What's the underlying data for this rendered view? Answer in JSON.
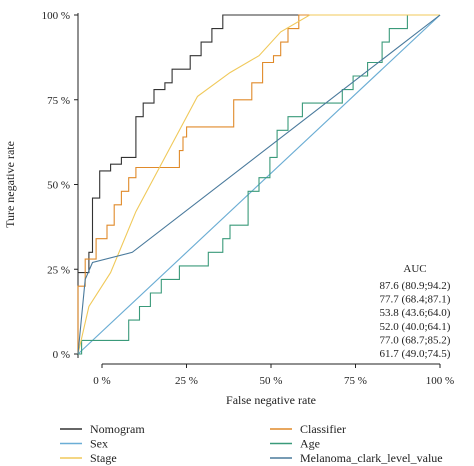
{
  "chart_data": {
    "type": "line",
    "xlabel": "False negative rate",
    "ylabel": "Ture negative rate",
    "xlim": [
      0,
      100
    ],
    "ylim": [
      0,
      100
    ],
    "x_ticks": [
      "0 %",
      "25 %",
      "50 %",
      "75 %",
      "100 %"
    ],
    "y_ticks": [
      "0 %",
      "25 %",
      "50 %",
      "75 %",
      "100 %"
    ],
    "grid": false,
    "reference_diagonal": true,
    "auc_title": "AUC",
    "auc_values": [
      "87.6 (80.9;94.2)",
      "77.7 (68.4;87.1)",
      "53.8 (43.6;64.0)",
      "52.0 (40.0;64.1)",
      "77.0 (68.7;85.2)",
      "61.7 (49.0;74.5)"
    ],
    "legend_position": "bottom",
    "series": [
      {
        "name": "Nomogram",
        "color": "#333333",
        "points": [
          [
            0,
            0
          ],
          [
            0,
            24
          ],
          [
            3,
            24
          ],
          [
            3,
            30
          ],
          [
            4,
            30
          ],
          [
            4,
            46
          ],
          [
            6,
            46
          ],
          [
            6,
            54
          ],
          [
            9,
            54
          ],
          [
            9,
            56
          ],
          [
            12,
            56
          ],
          [
            12,
            58
          ],
          [
            16,
            58
          ],
          [
            16,
            70
          ],
          [
            18,
            70
          ],
          [
            18,
            74
          ],
          [
            21,
            74
          ],
          [
            21,
            78
          ],
          [
            24,
            78
          ],
          [
            24,
            80
          ],
          [
            26,
            80
          ],
          [
            26,
            84
          ],
          [
            31,
            84
          ],
          [
            31,
            88
          ],
          [
            34,
            88
          ],
          [
            34,
            92
          ],
          [
            37,
            92
          ],
          [
            37,
            96
          ],
          [
            40,
            96
          ],
          [
            40,
            100
          ],
          [
            100,
            100
          ]
        ]
      },
      {
        "name": "Classifier",
        "color": "#e08a2a",
        "points": [
          [
            0,
            0
          ],
          [
            0,
            20
          ],
          [
            2,
            20
          ],
          [
            2,
            28
          ],
          [
            5,
            28
          ],
          [
            5,
            34
          ],
          [
            8,
            34
          ],
          [
            8,
            38
          ],
          [
            10,
            38
          ],
          [
            10,
            44
          ],
          [
            12,
            44
          ],
          [
            12,
            48
          ],
          [
            14,
            48
          ],
          [
            14,
            52
          ],
          [
            16,
            52
          ],
          [
            16,
            55
          ],
          [
            28,
            55
          ],
          [
            28,
            60
          ],
          [
            29,
            60
          ],
          [
            29,
            64
          ],
          [
            30,
            64
          ],
          [
            30,
            67
          ],
          [
            43,
            67
          ],
          [
            43,
            75
          ],
          [
            48,
            75
          ],
          [
            48,
            80
          ],
          [
            51,
            80
          ],
          [
            51,
            86
          ],
          [
            54,
            86
          ],
          [
            54,
            88
          ],
          [
            56,
            88
          ],
          [
            56,
            92
          ],
          [
            58,
            92
          ],
          [
            58,
            96
          ],
          [
            61,
            96
          ],
          [
            61,
            100
          ],
          [
            100,
            100
          ]
        ]
      },
      {
        "name": "Sex",
        "color": "#6aaed6",
        "points": [
          [
            0,
            0
          ],
          [
            100,
            100
          ]
        ]
      },
      {
        "name": "Age",
        "color": "#3a9a7a",
        "points": [
          [
            0,
            0
          ],
          [
            1,
            0
          ],
          [
            1,
            4
          ],
          [
            14,
            4
          ],
          [
            14,
            10
          ],
          [
            17,
            10
          ],
          [
            17,
            14
          ],
          [
            20,
            14
          ],
          [
            20,
            18
          ],
          [
            23,
            18
          ],
          [
            23,
            22
          ],
          [
            28,
            22
          ],
          [
            28,
            26
          ],
          [
            36,
            26
          ],
          [
            36,
            30
          ],
          [
            40,
            30
          ],
          [
            40,
            34
          ],
          [
            42,
            34
          ],
          [
            42,
            38
          ],
          [
            47,
            38
          ],
          [
            47,
            48
          ],
          [
            50,
            48
          ],
          [
            50,
            52
          ],
          [
            53,
            52
          ],
          [
            53,
            58
          ],
          [
            55,
            58
          ],
          [
            55,
            66
          ],
          [
            58,
            66
          ],
          [
            58,
            70
          ],
          [
            62,
            70
          ],
          [
            62,
            74
          ],
          [
            73,
            74
          ],
          [
            73,
            78
          ],
          [
            76,
            78
          ],
          [
            76,
            82
          ],
          [
            80,
            82
          ],
          [
            80,
            86
          ],
          [
            84,
            86
          ],
          [
            84,
            92
          ],
          [
            86,
            92
          ],
          [
            86,
            96
          ],
          [
            91,
            96
          ],
          [
            91,
            100
          ],
          [
            100,
            100
          ]
        ]
      },
      {
        "name": "Stage",
        "color": "#f0c95a",
        "points": [
          [
            0,
            0
          ],
          [
            3,
            14
          ],
          [
            9,
            24
          ],
          [
            16,
            42
          ],
          [
            24,
            58
          ],
          [
            33,
            76
          ],
          [
            42,
            83
          ],
          [
            50,
            88
          ],
          [
            56,
            95
          ],
          [
            64,
            100
          ],
          [
            100,
            100
          ]
        ]
      },
      {
        "name": "Melanoma_clark_level_value",
        "color": "#4a7a9c",
        "points": [
          [
            0,
            0
          ],
          [
            2,
            22
          ],
          [
            4,
            27
          ],
          [
            15,
            30
          ],
          [
            100,
            100
          ]
        ]
      }
    ]
  }
}
